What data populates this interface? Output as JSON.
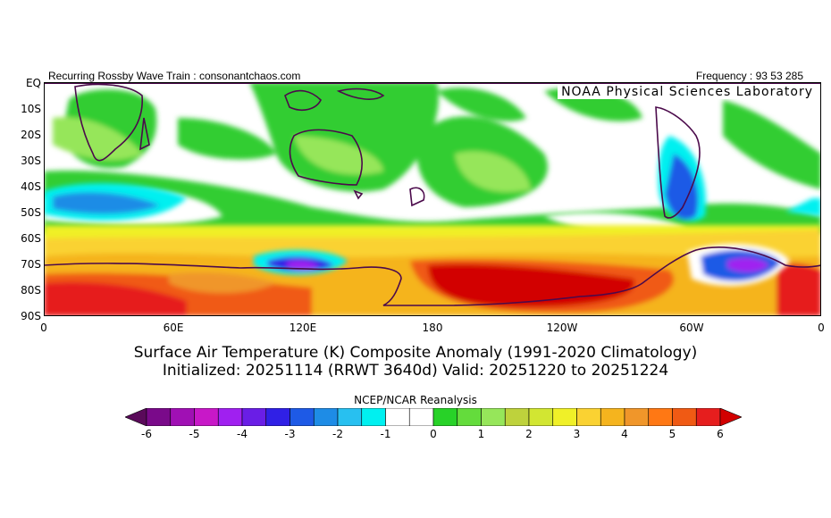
{
  "header": {
    "left_text": "Recurring Rossby Wave Train : consonantchaos.com",
    "right_text": "Frequency : 93 53 285",
    "credit": "NOAA Physical Sciences Laboratory"
  },
  "map": {
    "projection": "Cylindrical equidistant, Southern Hemisphere",
    "lat_labels": [
      "EQ",
      "10S",
      "20S",
      "30S",
      "40S",
      "50S",
      "60S",
      "70S",
      "80S",
      "90S"
    ],
    "lon_labels": [
      "0",
      "60E",
      "120E",
      "180",
      "120W",
      "60W",
      "0"
    ],
    "regions_icon": "world-map-icon"
  },
  "title": {
    "line1": "Surface Air Temperature (K) Composite Anomaly (1991-2020 Climatology)",
    "line2": "Initialized: 20251114 (RRWT 3640d) Valid: 20251220 to 20251224"
  },
  "colorbar": {
    "title": "NCEP/NCAR Reanalysis",
    "tick_labels": [
      "-6",
      "-5",
      "-4",
      "-3",
      "-2",
      "-1",
      "0",
      "1",
      "2",
      "3",
      "4",
      "5",
      "6"
    ],
    "colors": [
      "#5a0a5a",
      "#7a0a8a",
      "#a010b4",
      "#c818c8",
      "#a020f0",
      "#6a1ee6",
      "#3020e6",
      "#1e5ae6",
      "#1e8ce6",
      "#28c0f0",
      "#00f0f0",
      "#ffffff",
      "#ffffff",
      "#28d228",
      "#64dc3c",
      "#96e65a",
      "#bed23c",
      "#d2e632",
      "#f0f028",
      "#fad232",
      "#f5b41e",
      "#f0962a",
      "#ff7814",
      "#f05a14",
      "#e61e1e",
      "#d20000"
    ]
  }
}
